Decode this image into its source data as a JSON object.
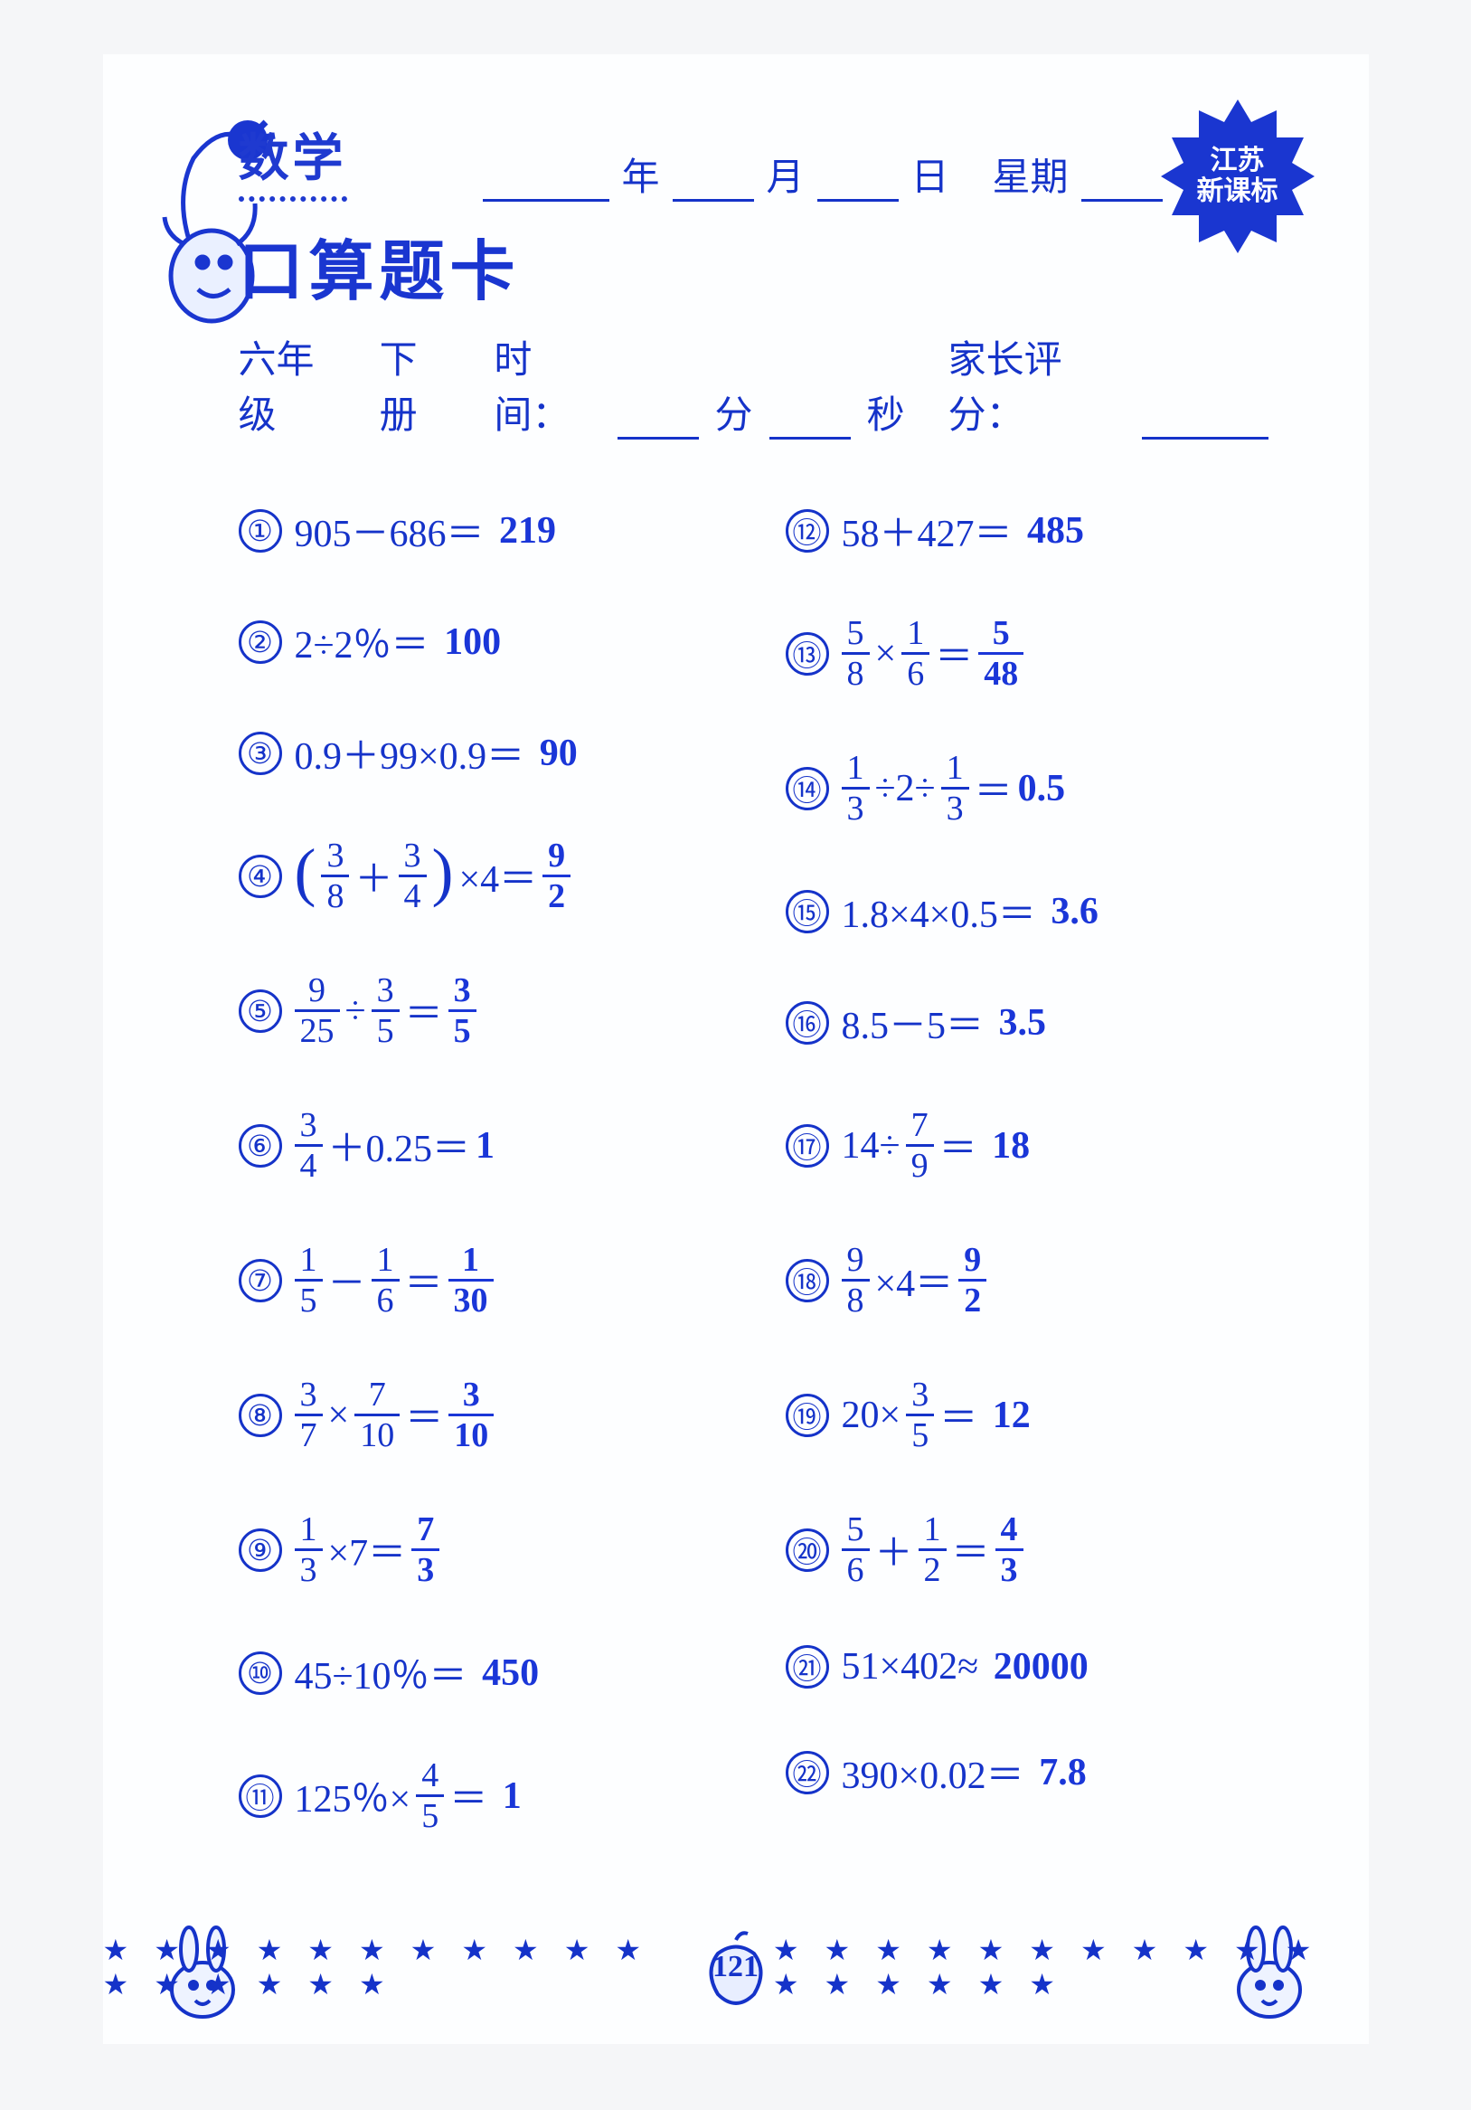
{
  "colors": {
    "primary": "#1533c9",
    "answer": "#1a36d8",
    "page_bg": "#fdfeff",
    "body_bg": "#f5f6f8"
  },
  "header": {
    "subject": "数学",
    "date_labels": {
      "year": "年",
      "month": "月",
      "day": "日",
      "weekday": "星期"
    },
    "card_title": "口算题卡",
    "grade": "六年级",
    "volume": "下册",
    "time_label": "时间：",
    "minute_unit": "分",
    "second_unit": "秒",
    "parent_score_label": "家长评分：",
    "badge_line1": "江苏",
    "badge_line2": "新课标"
  },
  "circled_numbers": [
    "①",
    "②",
    "③",
    "④",
    "⑤",
    "⑥",
    "⑦",
    "⑧",
    "⑨",
    "⑩",
    "⑪",
    "⑫",
    "⑬",
    "⑭",
    "⑮",
    "⑯",
    "⑰",
    "⑱",
    "⑲",
    "⑳",
    "㉑",
    "㉒"
  ],
  "problems_left": [
    {
      "n": 1,
      "type": "plain",
      "expr": "905－686＝",
      "answer": "219"
    },
    {
      "n": 2,
      "type": "plain",
      "expr": "2÷2％＝",
      "answer": "100"
    },
    {
      "n": 3,
      "type": "plain",
      "expr": "0.9＋99×0.9＝",
      "answer": "90"
    },
    {
      "n": 4,
      "type": "custom4"
    },
    {
      "n": 5,
      "type": "fracdiv",
      "a": {
        "n": "9",
        "d": "25"
      },
      "op": "÷",
      "b": {
        "n": "3",
        "d": "5"
      },
      "ans": {
        "n": "3",
        "d": "5"
      }
    },
    {
      "n": 6,
      "type": "fracplain",
      "a": {
        "n": "3",
        "d": "4"
      },
      "tail": "＋0.25＝",
      "answer": "1"
    },
    {
      "n": 7,
      "type": "fracdiv",
      "a": {
        "n": "1",
        "d": "5"
      },
      "op": "－",
      "b": {
        "n": "1",
        "d": "6"
      },
      "ans": {
        "n": "1",
        "d": "30"
      }
    },
    {
      "n": 8,
      "type": "fracdiv",
      "a": {
        "n": "3",
        "d": "7"
      },
      "op": "×",
      "b": {
        "n": "7",
        "d": "10"
      },
      "ans": {
        "n": "3",
        "d": "10"
      }
    },
    {
      "n": 9,
      "type": "fracplainR",
      "a": {
        "n": "1",
        "d": "3"
      },
      "mid": "×7＝",
      "ans": {
        "n": "7",
        "d": "3"
      }
    },
    {
      "n": 10,
      "type": "plain",
      "expr": "45÷10％＝",
      "answer": "450"
    },
    {
      "n": 11,
      "type": "prefixfrac",
      "pre": "125％×",
      "a": {
        "n": "4",
        "d": "5"
      },
      "tail": "＝",
      "answer": "1"
    }
  ],
  "problems_right": [
    {
      "n": 12,
      "type": "plain",
      "expr": "58＋427＝",
      "answer": "485"
    },
    {
      "n": 13,
      "type": "fracdiv",
      "a": {
        "n": "5",
        "d": "8"
      },
      "op": "×",
      "b": {
        "n": "1",
        "d": "6"
      },
      "ans": {
        "n": "5",
        "d": "48"
      }
    },
    {
      "n": 14,
      "type": "custom14"
    },
    {
      "n": 15,
      "type": "plain",
      "expr": "1.8×4×0.5＝",
      "answer": "3.6"
    },
    {
      "n": 16,
      "type": "plain",
      "expr": "8.5－5＝",
      "answer": "3.5"
    },
    {
      "n": 17,
      "type": "prefixfrac",
      "pre": "14÷",
      "a": {
        "n": "7",
        "d": "9"
      },
      "tail": "＝",
      "answer": "18"
    },
    {
      "n": 18,
      "type": "fracplainR",
      "a": {
        "n": "9",
        "d": "8"
      },
      "mid": "×4＝",
      "ans": {
        "n": "9",
        "d": "2"
      }
    },
    {
      "n": 19,
      "type": "prefixfrac",
      "pre": "20×",
      "a": {
        "n": "3",
        "d": "5"
      },
      "tail": "＝",
      "answer": "12"
    },
    {
      "n": 20,
      "type": "fracdiv",
      "a": {
        "n": "5",
        "d": "6"
      },
      "op": "＋",
      "b": {
        "n": "1",
        "d": "2"
      },
      "ans": {
        "n": "4",
        "d": "3"
      }
    },
    {
      "n": 21,
      "type": "plain",
      "expr": "51×402≈",
      "answer": "20000"
    },
    {
      "n": 22,
      "type": "plain",
      "expr": "390×0.02＝",
      "answer": "7.8"
    }
  ],
  "custom4": {
    "a": {
      "n": "3",
      "d": "8"
    },
    "b": {
      "n": "3",
      "d": "4"
    },
    "tail": "×4＝",
    "ans": {
      "n": "9",
      "d": "2"
    }
  },
  "custom14": {
    "a": {
      "n": "1",
      "d": "3"
    },
    "mid1": "÷2÷",
    "b": {
      "n": "1",
      "d": "3"
    },
    "tail": "＝",
    "answer": "0.5"
  },
  "footer": {
    "page_number": "121",
    "star": "★",
    "star_count_each_side": 17
  }
}
